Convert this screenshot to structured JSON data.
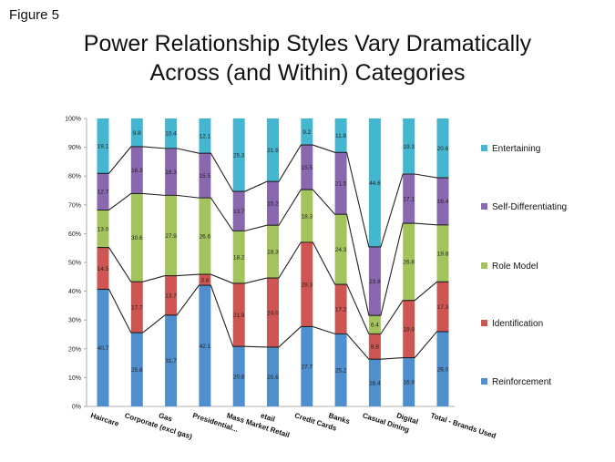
{
  "figure_label": "Figure 5",
  "title_line1": "Power Relationship Styles Vary Dramatically",
  "title_line2": "Across (and Within) Categories",
  "chart_data": {
    "type": "bar",
    "stacked": true,
    "title": "Power Relationship Styles Vary Dramatically Across (and Within) Categories",
    "categories": [
      "Haircare",
      "Corporate (excl gas)",
      "Gas",
      "Presidential...",
      "Mass Market Retail",
      "etail",
      "Credit Cards",
      "Banks",
      "Casual Dining",
      "Digital",
      "Total - Brands Used"
    ],
    "series": [
      {
        "name": "Reinforcement",
        "color": "#4f8fce",
        "values": [
          40.7,
          25.6,
          31.7,
          42.1,
          20.8,
          20.6,
          27.7,
          25.2,
          16.4,
          16.9,
          26.0
        ]
      },
      {
        "name": "Identification",
        "color": "#cd5652",
        "values": [
          14.5,
          17.7,
          13.7,
          3.8,
          21.9,
          24.0,
          29.3,
          17.2,
          8.8,
          19.9,
          17.3
        ]
      },
      {
        "name": "Role Model",
        "color": "#a3c45c",
        "values": [
          13.0,
          30.6,
          27.9,
          26.6,
          18.2,
          18.3,
          18.3,
          24.3,
          6.4,
          26.8,
          19.8
        ]
      },
      {
        "name": "Self-Differentiating",
        "color": "#8a68b0",
        "values": [
          12.7,
          16.3,
          16.3,
          15.5,
          13.7,
          15.2,
          15.5,
          21.5,
          23.8,
          17.1,
          16.4
        ]
      },
      {
        "name": "Entertaining",
        "color": "#45b6cf",
        "values": [
          19.1,
          9.8,
          10.4,
          12.1,
          25.3,
          21.9,
          9.2,
          11.8,
          44.6,
          19.3,
          20.6
        ]
      }
    ],
    "labels": [
      [
        "40.7",
        "14.5",
        "13.0",
        "12.7",
        "19.1"
      ],
      [
        "25.6",
        "17.7",
        "30.6",
        "16.3",
        "9.8"
      ],
      [
        "31.7",
        "13.7",
        "27.9",
        "16.3",
        "10.4"
      ],
      [
        "42.1",
        "3.8",
        "26.6",
        "15.5",
        "12.1"
      ],
      [
        "20.8",
        "21.9",
        "18.2",
        "13.7",
        "25.3"
      ],
      [
        "20.6",
        "24.0",
        "18.3",
        "15.2",
        "21.9"
      ],
      [
        "27.7",
        "29.3",
        "18.3",
        "15.5",
        "9.2"
      ],
      [
        "25.2",
        "17.2",
        "24.3",
        "21.5",
        "11.8"
      ],
      [
        "16.4",
        "8.8",
        "6.4",
        "23.8",
        "44.6"
      ],
      [
        "16.9",
        "19.9",
        "26.8",
        "17.1",
        "19.3"
      ],
      [
        "26.0",
        "17.3",
        "19.8",
        "16.4",
        "20.6"
      ]
    ],
    "y_ticks": [
      "0%",
      "10%",
      "20%",
      "30%",
      "40%",
      "50%",
      "60%",
      "70%",
      "80%",
      "90%",
      "100%"
    ],
    "ylim": [
      0,
      100
    ],
    "legend_order": [
      "Entertaining",
      "Self-Differentiating",
      "Role Model",
      "Identification",
      "Reinforcement"
    ],
    "legend_position": "right",
    "connector_lines": true,
    "grid": false
  }
}
